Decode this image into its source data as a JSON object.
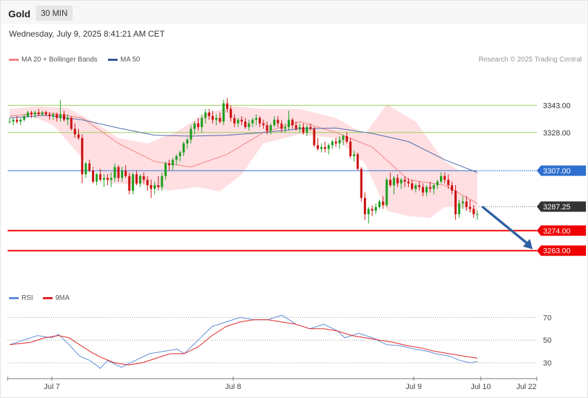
{
  "header": {
    "symbol": "Gold",
    "timeframe": "30 MIN",
    "datetime": "Wednesday, July 9, 2025 8:41:21 AM CET"
  },
  "legend": {
    "ma20_label": "MA 20 + Bollinger Bands",
    "ma50_label": "MA 50",
    "credit": "Research © 2025 Trading Central"
  },
  "rsi_legend": {
    "rsi_label": "RSI",
    "ma_label": "9MA"
  },
  "colors": {
    "up": "#1e9e1e",
    "down": "#cc1111",
    "band_fill": "#ffd9dd",
    "ma20": "#f08080",
    "ma50": "#4a6aa8",
    "support": "#ee0000",
    "pivot": "#2f6fcf",
    "resistance": "#9acd5a",
    "price_tag": "#333333",
    "arrow": "#2e5fa3",
    "rsi": "#5b8bd9",
    "rsi_ma": "#e02020"
  },
  "chart_data": {
    "type": "candlestick",
    "instrument": "Gold",
    "timeframe": "30 MIN",
    "x_tick_labels": [
      "Jul 7",
      "Jul 8",
      "Jul 9",
      "Jul 10",
      "Jul 22"
    ],
    "y_range": [
      3252,
      3357
    ],
    "levels": [
      {
        "value": "3343.00",
        "kind": "resistance"
      },
      {
        "value": "3328.00",
        "kind": "resistance"
      },
      {
        "value": "3307.00",
        "kind": "pivot"
      },
      {
        "value": "3287.25",
        "kind": "last-price"
      },
      {
        "value": "3274.00",
        "kind": "support"
      },
      {
        "value": "3263.00",
        "kind": "support"
      }
    ],
    "forecast_arrow": {
      "from": 3287.25,
      "to": 3263.0,
      "direction": "down"
    },
    "ohlc": [
      [
        3334,
        3336,
        3333,
        3334
      ],
      [
        3334,
        3336,
        3332,
        3335
      ],
      [
        3335,
        3337,
        3333,
        3334
      ],
      [
        3334,
        3336,
        3332,
        3335
      ],
      [
        3335,
        3338,
        3334,
        3337
      ],
      [
        3337,
        3340,
        3336,
        3339
      ],
      [
        3339,
        3340,
        3336,
        3338
      ],
      [
        3338,
        3340,
        3336,
        3339
      ],
      [
        3339,
        3341,
        3337,
        3338
      ],
      [
        3338,
        3340,
        3337,
        3339
      ],
      [
        3339,
        3340,
        3337,
        3338
      ],
      [
        3338,
        3339,
        3335,
        3337
      ],
      [
        3337,
        3339,
        3335,
        3338
      ],
      [
        3338,
        3339,
        3334,
        3336
      ],
      [
        3336,
        3346,
        3334,
        3338
      ],
      [
        3338,
        3340,
        3334,
        3335
      ],
      [
        3335,
        3338,
        3332,
        3336
      ],
      [
        3336,
        3337,
        3329,
        3330
      ],
      [
        3330,
        3333,
        3325,
        3327
      ],
      [
        3327,
        3330,
        3324,
        3325
      ],
      [
        3325,
        3327,
        3300,
        3305
      ],
      [
        3305,
        3312,
        3303,
        3311
      ],
      [
        3311,
        3313,
        3306,
        3307
      ],
      [
        3307,
        3309,
        3300,
        3301
      ],
      [
        3301,
        3306,
        3299,
        3305
      ],
      [
        3305,
        3308,
        3301,
        3302
      ],
      [
        3302,
        3305,
        3298,
        3303
      ],
      [
        3303,
        3305,
        3299,
        3302
      ],
      [
        3302,
        3306,
        3298,
        3303
      ],
      [
        3303,
        3311,
        3301,
        3309
      ],
      [
        3309,
        3310,
        3301,
        3303
      ],
      [
        3303,
        3309,
        3301,
        3307
      ],
      [
        3307,
        3310,
        3303,
        3304
      ],
      [
        3304,
        3306,
        3294,
        3296
      ],
      [
        3296,
        3306,
        3294,
        3305
      ],
      [
        3305,
        3307,
        3299,
        3300
      ],
      [
        3300,
        3305,
        3298,
        3304
      ],
      [
        3304,
        3306,
        3300,
        3302
      ],
      [
        3302,
        3304,
        3296,
        3299
      ],
      [
        3299,
        3302,
        3292,
        3297
      ],
      [
        3297,
        3301,
        3294,
        3299
      ],
      [
        3299,
        3304,
        3296,
        3298
      ],
      [
        3298,
        3306,
        3296,
        3304
      ],
      [
        3304,
        3312,
        3302,
        3311
      ],
      [
        3311,
        3313,
        3307,
        3310
      ],
      [
        3310,
        3314,
        3307,
        3313
      ],
      [
        3313,
        3316,
        3310,
        3315
      ],
      [
        3315,
        3318,
        3312,
        3317
      ],
      [
        3317,
        3323,
        3315,
        3322
      ],
      [
        3322,
        3325,
        3319,
        3324
      ],
      [
        3324,
        3332,
        3322,
        3330
      ],
      [
        3330,
        3334,
        3327,
        3333
      ],
      [
        3333,
        3336,
        3329,
        3331
      ],
      [
        3331,
        3338,
        3328,
        3336
      ],
      [
        3336,
        3341,
        3333,
        3339
      ],
      [
        3339,
        3341,
        3335,
        3337
      ],
      [
        3337,
        3340,
        3333,
        3335
      ],
      [
        3335,
        3338,
        3332,
        3336
      ],
      [
        3336,
        3339,
        3333,
        3334
      ],
      [
        3334,
        3346,
        3332,
        3344
      ],
      [
        3344,
        3347,
        3339,
        3341
      ],
      [
        3341,
        3343,
        3334,
        3336
      ],
      [
        3336,
        3338,
        3331,
        3333
      ],
      [
        3333,
        3336,
        3331,
        3335
      ],
      [
        3335,
        3337,
        3332,
        3334
      ],
      [
        3334,
        3336,
        3330,
        3331
      ],
      [
        3331,
        3335,
        3329,
        3333
      ],
      [
        3333,
        3336,
        3331,
        3335
      ],
      [
        3335,
        3338,
        3332,
        3336
      ],
      [
        3336,
        3337,
        3331,
        3333
      ],
      [
        3333,
        3335,
        3330,
        3332
      ],
      [
        3332,
        3334,
        3327,
        3329
      ],
      [
        3329,
        3333,
        3327,
        3332
      ],
      [
        3332,
        3337,
        3331,
        3335
      ],
      [
        3335,
        3337,
        3331,
        3333
      ],
      [
        3333,
        3335,
        3328,
        3330
      ],
      [
        3330,
        3333,
        3328,
        3331
      ],
      [
        3331,
        3340,
        3329,
        3335
      ],
      [
        3335,
        3336,
        3330,
        3332
      ],
      [
        3332,
        3334,
        3329,
        3330
      ],
      [
        3330,
        3333,
        3328,
        3331
      ],
      [
        3331,
        3333,
        3327,
        3328
      ],
      [
        3328,
        3332,
        3326,
        3331
      ],
      [
        3331,
        3333,
        3329,
        3330
      ],
      [
        3330,
        3331,
        3320,
        3321
      ],
      [
        3321,
        3325,
        3318,
        3319
      ],
      [
        3319,
        3322,
        3317,
        3320
      ],
      [
        3320,
        3323,
        3317,
        3319
      ],
      [
        3319,
        3322,
        3316,
        3321
      ],
      [
        3321,
        3324,
        3319,
        3323
      ],
      [
        3323,
        3325,
        3320,
        3322
      ],
      [
        3322,
        3326,
        3319,
        3324
      ],
      [
        3324,
        3327,
        3321,
        3326
      ],
      [
        3326,
        3328,
        3322,
        3323
      ],
      [
        3323,
        3325,
        3314,
        3315
      ],
      [
        3315,
        3318,
        3312,
        3316
      ],
      [
        3316,
        3317,
        3307,
        3308
      ],
      [
        3308,
        3309,
        3290,
        3292
      ],
      [
        3292,
        3295,
        3280,
        3283
      ],
      [
        3283,
        3287,
        3278,
        3286
      ],
      [
        3286,
        3288,
        3282,
        3285
      ],
      [
        3285,
        3289,
        3283,
        3287
      ],
      [
        3287,
        3291,
        3286,
        3290
      ],
      [
        3290,
        3293,
        3286,
        3288
      ],
      [
        3288,
        3303,
        3287,
        3302
      ],
      [
        3302,
        3306,
        3298,
        3299
      ],
      [
        3299,
        3304,
        3294,
        3303
      ],
      [
        3303,
        3305,
        3298,
        3300
      ],
      [
        3300,
        3303,
        3297,
        3302
      ],
      [
        3302,
        3304,
        3298,
        3301
      ],
      [
        3301,
        3303,
        3298,
        3300
      ],
      [
        3300,
        3302,
        3296,
        3297
      ],
      [
        3297,
        3300,
        3295,
        3299
      ],
      [
        3299,
        3301,
        3296,
        3298
      ],
      [
        3298,
        3300,
        3293,
        3295
      ],
      [
        3295,
        3299,
        3293,
        3298
      ],
      [
        3298,
        3301,
        3295,
        3297
      ],
      [
        3297,
        3300,
        3294,
        3299
      ],
      [
        3299,
        3302,
        3297,
        3301
      ],
      [
        3301,
        3306,
        3300,
        3304
      ],
      [
        3304,
        3306,
        3300,
        3302
      ],
      [
        3302,
        3305,
        3297,
        3299
      ],
      [
        3299,
        3301,
        3294,
        3296
      ],
      [
        3296,
        3299,
        3280,
        3283
      ],
      [
        3283,
        3291,
        3281,
        3289
      ],
      [
        3289,
        3293,
        3286,
        3290
      ],
      [
        3290,
        3293,
        3285,
        3287
      ],
      [
        3287,
        3291,
        3284,
        3286
      ],
      [
        3286,
        3288,
        3281,
        3283
      ],
      [
        3283,
        3285,
        3280,
        3283
      ]
    ],
    "ma20": [
      [
        0,
        3337.0
      ],
      [
        10,
        3339.0
      ],
      [
        20,
        3336.0
      ],
      [
        30,
        3322.0
      ],
      [
        40,
        3312.0
      ],
      [
        50,
        3309.0
      ],
      [
        60,
        3316.0
      ],
      [
        70,
        3328.0
      ],
      [
        80,
        3334.0
      ],
      [
        90,
        3328.0
      ],
      [
        100,
        3320.0
      ],
      [
        110,
        3302.0
      ],
      [
        120,
        3299.0
      ],
      [
        129,
        3289.0
      ]
    ],
    "ma50": [
      [
        0,
        3336.0
      ],
      [
        10,
        3337.5
      ],
      [
        20,
        3335.0
      ],
      [
        30,
        3330.5
      ],
      [
        40,
        3326.5
      ],
      [
        50,
        3326.0
      ],
      [
        60,
        3326.5
      ],
      [
        70,
        3328.0
      ],
      [
        80,
        3330.0
      ],
      [
        90,
        3330.5
      ],
      [
        100,
        3327.5
      ],
      [
        110,
        3323.0
      ],
      [
        120,
        3313.0
      ],
      [
        129,
        3306.0
      ]
    ],
    "bollinger_upper": [
      [
        0,
        3341.0
      ],
      [
        8,
        3342.5
      ],
      [
        16,
        3341.5
      ],
      [
        24,
        3333.0
      ],
      [
        30,
        3325.0
      ],
      [
        38,
        3322.0
      ],
      [
        46,
        3328.5
      ],
      [
        54,
        3338.5
      ],
      [
        62,
        3342.5
      ],
      [
        70,
        3341.0
      ],
      [
        80,
        3341.0
      ],
      [
        90,
        3336.0
      ],
      [
        98,
        3327.0
      ],
      [
        104,
        3343.5
      ],
      [
        112,
        3334.0
      ],
      [
        120,
        3312.0
      ],
      [
        124,
        3307.0
      ],
      [
        129,
        3307.0
      ]
    ],
    "bollinger_lower": [
      [
        0,
        3336.0
      ],
      [
        6,
        3337.0
      ],
      [
        12,
        3332.0
      ],
      [
        20,
        3314.0
      ],
      [
        28,
        3300.0
      ],
      [
        36,
        3299.5
      ],
      [
        44,
        3296.0
      ],
      [
        52,
        3298.0
      ],
      [
        58,
        3295.5
      ],
      [
        64,
        3305.0
      ],
      [
        70,
        3322.0
      ],
      [
        80,
        3327.0
      ],
      [
        90,
        3325.0
      ],
      [
        98,
        3311.0
      ],
      [
        104,
        3285.0
      ],
      [
        110,
        3282.0
      ],
      [
        116,
        3281.0
      ],
      [
        120,
        3287.0
      ],
      [
        124,
        3287.0
      ],
      [
        129,
        3283.0
      ]
    ],
    "rsi": {
      "levels": [
        70,
        50,
        30
      ],
      "rsi_values": [
        [
          0,
          46
        ],
        [
          4,
          50
        ],
        [
          8,
          54
        ],
        [
          12,
          52
        ],
        [
          14,
          55
        ],
        [
          17,
          46
        ],
        [
          20,
          36
        ],
        [
          23,
          32
        ],
        [
          26,
          25
        ],
        [
          28,
          32
        ],
        [
          32,
          26
        ],
        [
          36,
          32
        ],
        [
          40,
          38
        ],
        [
          44,
          40
        ],
        [
          48,
          42
        ],
        [
          50,
          38
        ],
        [
          54,
          50
        ],
        [
          58,
          62
        ],
        [
          62,
          66
        ],
        [
          66,
          70
        ],
        [
          70,
          68
        ],
        [
          74,
          68
        ],
        [
          78,
          72
        ],
        [
          82,
          64
        ],
        [
          86,
          60
        ],
        [
          90,
          64
        ],
        [
          94,
          58
        ],
        [
          96,
          52
        ],
        [
          100,
          56
        ],
        [
          104,
          52
        ],
        [
          108,
          46
        ],
        [
          112,
          45
        ],
        [
          116,
          42
        ],
        [
          120,
          40
        ],
        [
          122,
          38
        ],
        [
          126,
          36
        ],
        [
          129,
          32
        ],
        [
          132,
          30
        ],
        [
          134,
          31
        ]
      ],
      "ma_values": [
        [
          0,
          46
        ],
        [
          6,
          48
        ],
        [
          10,
          52
        ],
        [
          14,
          54
        ],
        [
          17,
          52
        ],
        [
          20,
          46
        ],
        [
          23,
          40
        ],
        [
          26,
          35
        ],
        [
          30,
          30
        ],
        [
          34,
          28
        ],
        [
          38,
          30
        ],
        [
          42,
          34
        ],
        [
          46,
          38
        ],
        [
          50,
          38
        ],
        [
          54,
          44
        ],
        [
          58,
          54
        ],
        [
          62,
          62
        ],
        [
          66,
          66
        ],
        [
          70,
          68
        ],
        [
          74,
          68
        ],
        [
          78,
          66
        ],
        [
          82,
          64
        ],
        [
          86,
          60
        ],
        [
          90,
          60
        ],
        [
          94,
          58
        ],
        [
          98,
          54
        ],
        [
          102,
          52
        ],
        [
          106,
          50
        ],
        [
          110,
          48
        ],
        [
          114,
          45
        ],
        [
          118,
          43
        ],
        [
          122,
          40
        ],
        [
          126,
          38
        ],
        [
          130,
          36
        ],
        [
          134,
          34
        ]
      ]
    }
  }
}
